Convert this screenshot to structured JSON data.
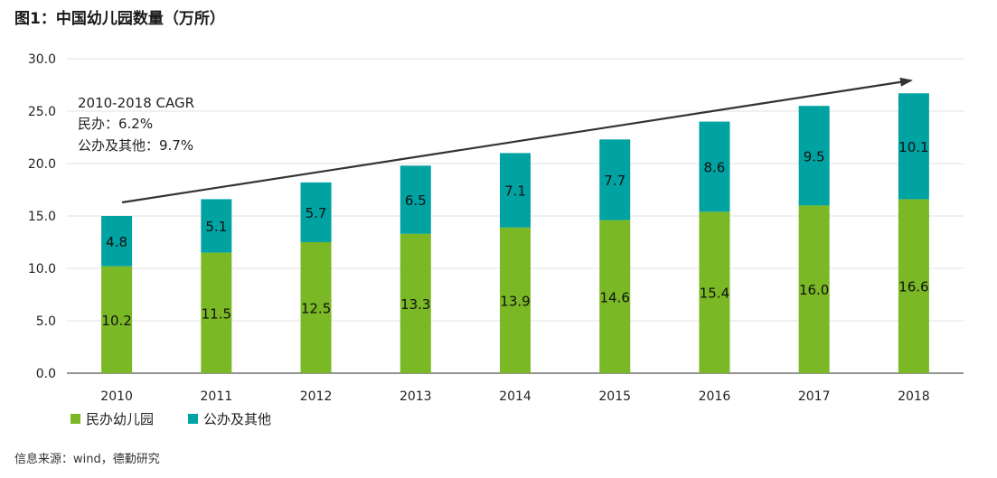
{
  "title": "图1：中国幼儿园数量（万所）",
  "source": "信息来源：wind，德勤研究",
  "annotation": [
    "2010-2018 CAGR",
    "民办：6.2%",
    "公办及其他：9.7%"
  ],
  "colors": {
    "private": "#7ab825",
    "public": "#00a3a1",
    "arrow": "#333333"
  },
  "chart_data": {
    "type": "bar",
    "stacked": true,
    "categories": [
      "2010",
      "2011",
      "2012",
      "2013",
      "2014",
      "2015",
      "2016",
      "2017",
      "2018"
    ],
    "series": [
      {
        "name": "民办幼儿园",
        "values": [
          10.2,
          11.5,
          12.5,
          13.3,
          13.9,
          14.6,
          15.4,
          16.0,
          16.6
        ]
      },
      {
        "name": "公办及其他",
        "values": [
          4.8,
          5.1,
          5.7,
          6.5,
          7.1,
          7.7,
          8.6,
          9.5,
          10.1
        ]
      }
    ],
    "ylim": [
      0,
      30
    ],
    "yticks": [
      "0.0",
      "5.0",
      "10.0",
      "15.0",
      "20.0",
      "25.0",
      "30.0"
    ],
    "grid": true,
    "legend_position": "bottom-left"
  }
}
